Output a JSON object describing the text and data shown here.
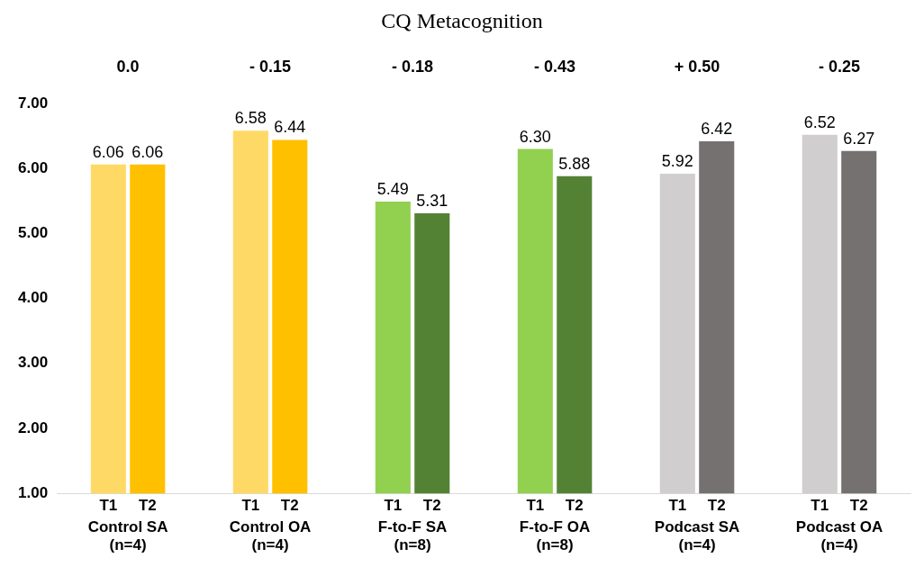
{
  "chart_data": {
    "type": "bar",
    "title": "CQ Metacognition",
    "categories": [
      "Control SA (n=4)",
      "Control OA (n=4)",
      "F-to-F SA (n=8)",
      "F-to-F OA (n=8)",
      "Podcast SA (n=4)",
      "Podcast OA (n=4)"
    ],
    "series": [
      {
        "name": "T1",
        "colors": [
          "#ffd966",
          "#ffd966",
          "#92d050",
          "#92d050",
          "#d0cece",
          "#d0cece"
        ],
        "values": [
          6.06,
          6.58,
          5.49,
          6.3,
          5.92,
          6.52
        ],
        "value_labels": [
          "6.06",
          "6.58",
          "5.49",
          "6.30",
          "5.92",
          "6.52"
        ]
      },
      {
        "name": "T2",
        "colors": [
          "#ffc000",
          "#ffc000",
          "#548235",
          "#548235",
          "#767171",
          "#767171"
        ],
        "values": [
          6.06,
          6.44,
          5.31,
          5.88,
          6.42,
          6.27
        ],
        "value_labels": [
          "6.06",
          "6.44",
          "5.31",
          "5.88",
          "6.42",
          "6.27"
        ]
      }
    ],
    "ylim": [
      1,
      7
    ],
    "yticks": [
      {
        "value": 1,
        "label": "1.00"
      },
      {
        "value": 2,
        "label": "2.00"
      },
      {
        "value": 3,
        "label": "3.00"
      },
      {
        "value": 4,
        "label": "4.00"
      },
      {
        "value": 5,
        "label": "5.00"
      },
      {
        "value": 6,
        "label": "6.00"
      },
      {
        "value": 7,
        "label": "7.00"
      }
    ],
    "grid": false,
    "legend": false,
    "annotations": [
      "0.0",
      "- 0.15",
      "- 0.18",
      "- 0.43",
      "+ 0.50",
      "- 0.25"
    ]
  }
}
